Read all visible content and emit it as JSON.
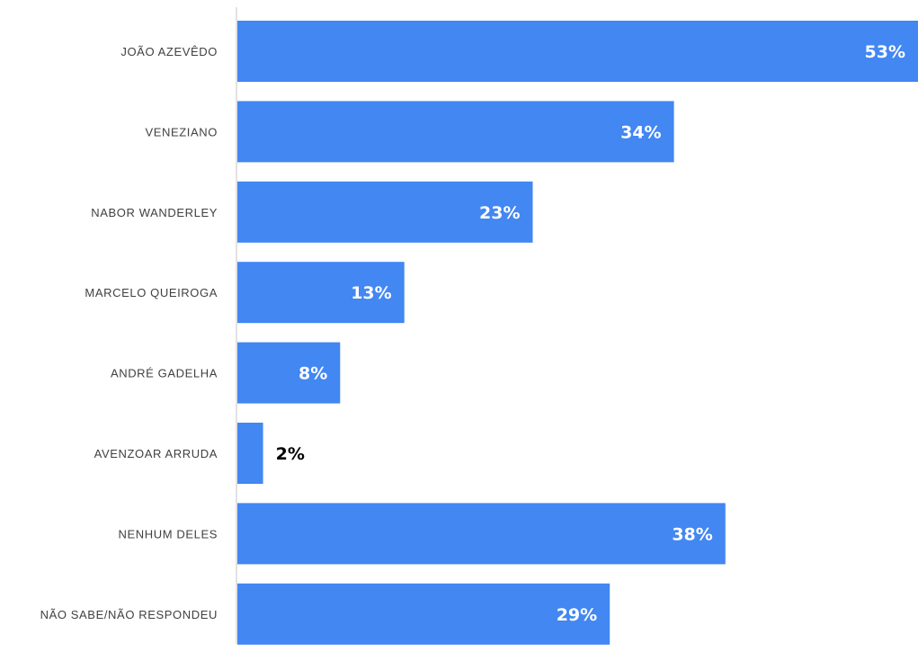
{
  "chart_data": {
    "type": "bar",
    "orientation": "horizontal",
    "categories": [
      "JOÃO AZEVÊDO",
      "VENEZIANO",
      "NABOR WANDERLEY",
      "MARCELO QUEIROGA",
      "ANDRÉ GADELHA",
      "AVENZOAR ARRUDA",
      "NENHUM DELES",
      "NÃO SABE/NÃO RESPONDEU"
    ],
    "values": [
      53,
      34,
      23,
      13,
      8,
      2,
      38,
      29
    ],
    "value_labels": [
      "53%",
      "34%",
      "23%",
      "13%",
      "8%",
      "2%",
      "38%",
      "29%"
    ],
    "unit": "%",
    "xlim": [
      0,
      53
    ],
    "grid": false,
    "legend": "none",
    "colors": {
      "bar": "#4287F2",
      "label_inside": "#ffffff",
      "label_outside": "#000000",
      "category_text": "#404040",
      "axis": "#d9d9d9"
    }
  }
}
